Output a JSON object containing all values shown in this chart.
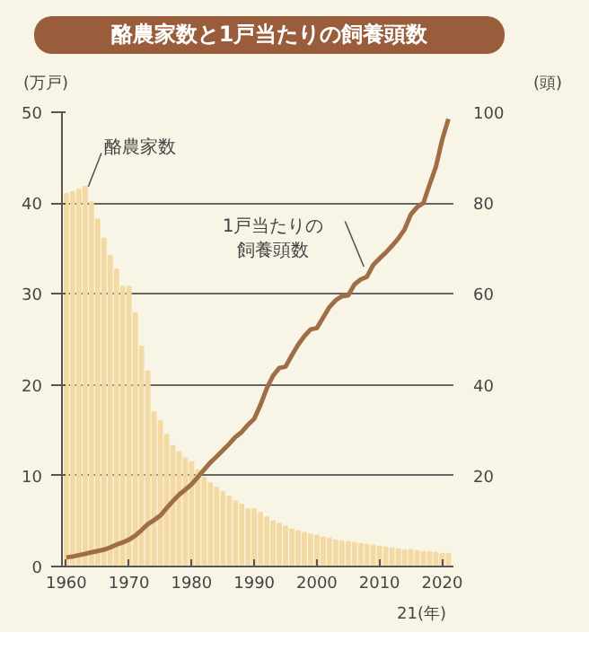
{
  "chart_data": {
    "type": "bar",
    "title": "酪農家数と1戸当たりの飼養頭数",
    "ylabel": "(万戸)",
    "y2label": "(頭)",
    "xlabel": "21(年)",
    "x": [
      1960,
      1961,
      1962,
      1963,
      1964,
      1965,
      1966,
      1967,
      1968,
      1969,
      1970,
      1971,
      1972,
      1973,
      1974,
      1975,
      1976,
      1977,
      1978,
      1979,
      1980,
      1981,
      1982,
      1983,
      1984,
      1985,
      1986,
      1987,
      1988,
      1989,
      1990,
      1991,
      1992,
      1993,
      1994,
      1995,
      1996,
      1997,
      1998,
      1999,
      2000,
      2001,
      2002,
      2003,
      2004,
      2005,
      2006,
      2007,
      2008,
      2009,
      2010,
      2011,
      2012,
      2013,
      2014,
      2015,
      2016,
      2017,
      2018,
      2019,
      2020,
      2021
    ],
    "xlim": [
      1959.3,
      2021.8
    ],
    "xticks": [
      1960,
      1970,
      1980,
      1990,
      2000,
      2010,
      2020
    ],
    "ylim": [
      0,
      50
    ],
    "yticks": [
      0,
      10,
      20,
      30,
      40,
      50
    ],
    "y2lim": [
      0,
      100
    ],
    "y2ticks": [
      20,
      40,
      60,
      80,
      100
    ],
    "grid": "y",
    "series": [
      {
        "name": "酪農家数",
        "color": "#f3d9a2",
        "values": [
          41.0,
          41.2,
          41.5,
          41.8,
          40.1,
          38.2,
          36.1,
          34.2,
          32.7,
          30.8,
          30.8,
          27.9,
          24.2,
          21.5,
          17.0,
          16.0,
          14.5,
          13.3,
          12.6,
          11.9,
          11.5,
          10.6,
          9.8,
          9.2,
          8.7,
          8.2,
          7.7,
          7.2,
          6.8,
          6.3,
          6.3,
          5.9,
          5.4,
          5.0,
          4.7,
          4.4,
          4.1,
          3.9,
          3.7,
          3.5,
          3.4,
          3.2,
          3.1,
          2.9,
          2.8,
          2.7,
          2.6,
          2.5,
          2.4,
          2.3,
          2.2,
          2.1,
          2.0,
          1.9,
          1.8,
          1.8,
          1.7,
          1.6,
          1.6,
          1.5,
          1.4,
          1.4
        ]
      },
      {
        "name": "1戸当たりの飼養頭数",
        "type": "line",
        "axis": "y2",
        "color": "#a06e46",
        "values": [
          2.0,
          2.2,
          2.5,
          2.8,
          3.1,
          3.4,
          3.7,
          4.2,
          4.8,
          5.3,
          5.9,
          6.8,
          8.0,
          9.3,
          10.2,
          11.2,
          12.8,
          14.4,
          15.8,
          16.9,
          18.1,
          19.7,
          21.3,
          22.9,
          24.2,
          25.6,
          27.0,
          28.5,
          29.6,
          31.2,
          32.5,
          35.6,
          39.2,
          42.0,
          43.7,
          44.0,
          46.5,
          48.8,
          50.7,
          52.2,
          52.5,
          54.8,
          57.1,
          58.6,
          59.5,
          59.7,
          62.1,
          63.2,
          63.8,
          66.4,
          67.8,
          69.1,
          70.6,
          72.2,
          74.2,
          77.5,
          79.1,
          80.0,
          84.1,
          88.0,
          93.9,
          98.5
        ]
      }
    ]
  }
}
